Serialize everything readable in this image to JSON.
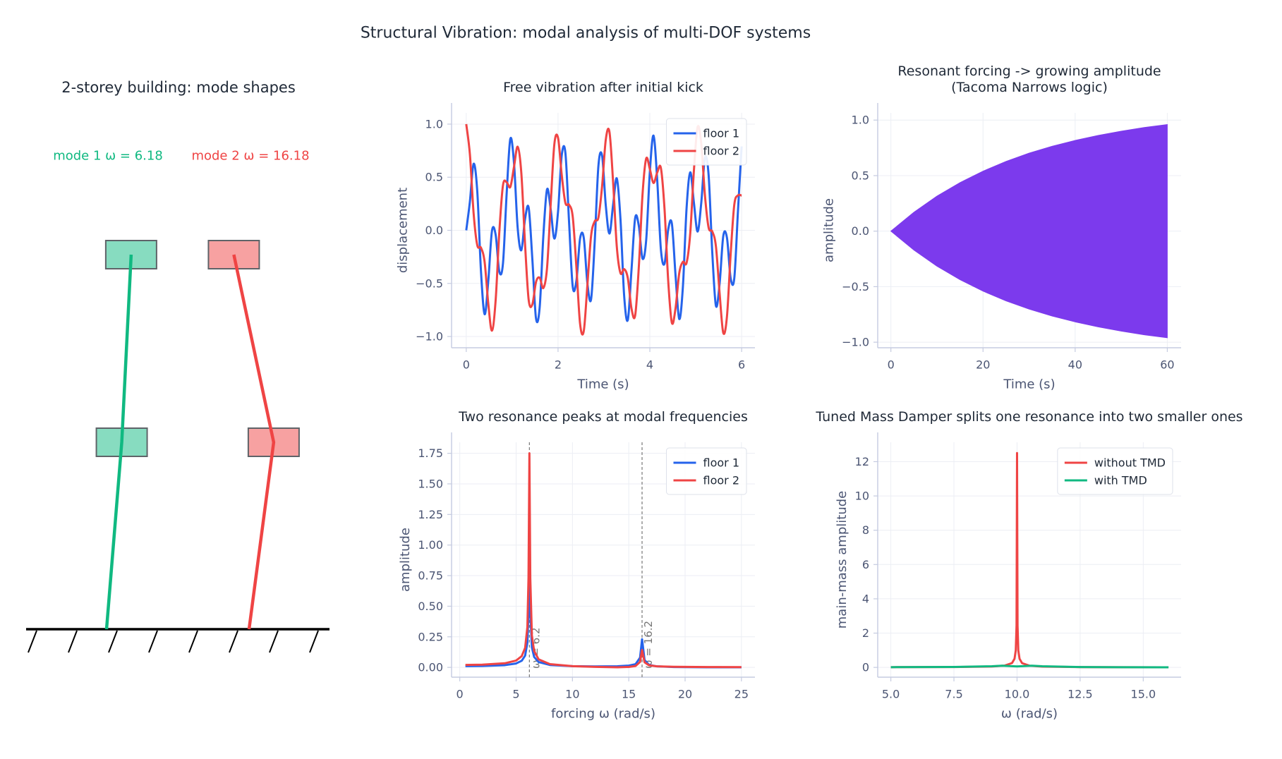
{
  "title": "Structural Vibration:  modal analysis of multi-DOF systems",
  "chart_data": [
    {
      "type": "mode_shapes",
      "title": "2-storey building:  mode shapes",
      "series": [
        {
          "name": "mode 1  ω = 6.18",
          "color": "#10b981",
          "values": [
            0,
            0.526,
            0.851
          ]
        },
        {
          "name": "mode 2  ω = 16.18",
          "color": "#ef4444",
          "values": [
            0,
            0.851,
            -0.526
          ]
        }
      ]
    },
    {
      "type": "line",
      "title": "Free vibration after initial kick",
      "xlabel": "Time (s)",
      "ylabel": "displacement",
      "smooth": true,
      "grid": true,
      "legend": "upper right",
      "xlim": [
        -0.32,
        6.29
      ],
      "ylim": [
        -1.106,
        1.106
      ],
      "xticks": [
        0,
        2,
        4,
        6
      ],
      "yticks": [
        {
          "value": -1,
          "label": "−1.0"
        },
        {
          "value": -0.5,
          "label": "−0.5"
        },
        {
          "value": 0,
          "label": "0.0"
        },
        {
          "value": 0.5,
          "label": "0.5"
        },
        {
          "value": 1,
          "label": "1.0"
        }
      ],
      "x": [
        0,
        0.08,
        0.16,
        0.24,
        0.32,
        0.4,
        0.48,
        0.56,
        0.64,
        0.72,
        0.8,
        0.88,
        0.96,
        1.04,
        1.12,
        1.2,
        1.28,
        1.36,
        1.44,
        1.52,
        1.6,
        1.68,
        1.76,
        1.84,
        1.92,
        2,
        2.08,
        2.16,
        2.24,
        2.32,
        2.4,
        2.48,
        2.56,
        2.64,
        2.72,
        2.8,
        2.88,
        2.96,
        3.04,
        3.12,
        3.2,
        3.28,
        3.36,
        3.44,
        3.52,
        3.6,
        3.68,
        3.76,
        3.84,
        3.92,
        4,
        4.08,
        4.16,
        4.24,
        4.32,
        4.4,
        4.48,
        4.56,
        4.64,
        4.72,
        4.8,
        4.88,
        4.96,
        5.04,
        5.12,
        5.2,
        5.28,
        5.36,
        5.44,
        5.52,
        5.6,
        5.68,
        5.76,
        5.84,
        5.92,
        6
      ],
      "series": [
        {
          "name": "floor 1",
          "color": "#2563eb",
          "values": [
            0,
            0.272,
            0.626,
            0.369,
            -0.377,
            -0.79,
            -0.479,
            -0.007,
            -0.04,
            -0.388,
            -0.313,
            0.342,
            0.86,
            0.637,
            0.025,
            -0.188,
            0.103,
            0.213,
            -0.271,
            -0.83,
            -0.725,
            -0.052,
            0.385,
            0.197,
            -0.078,
            0.175,
            0.705,
            0.73,
            0.078,
            -0.53,
            -0.476,
            -0.077,
            -0.07,
            -0.501,
            -0.649,
            -0.099,
            0.609,
            0.701,
            0.235,
            -0.031,
            0.241,
            0.489,
            0.107,
            -0.614,
            -0.845,
            -0.375,
            0.115,
            0.042,
            -0.266,
            -0.095,
            0.549,
            0.892,
            0.479,
            -0.175,
            -0.314,
            0.007,
            0.063,
            -0.424,
            -0.835,
            -0.532,
            0.206,
            0.546,
            0.26,
            -0.012,
            0.257,
            0.682,
            0.523,
            -0.207,
            -0.711,
            -0.502,
            -0.054,
            -0.07,
            -0.449,
            -0.451,
            0.182,
            0.79
          ]
        },
        {
          "name": "floor 2",
          "color": "#ef4444",
          "values": [
            1,
            0.713,
            0.163,
            -0.14,
            -0.163,
            -0.297,
            -0.689,
            -0.945,
            -0.662,
            -0.02,
            0.423,
            0.453,
            0.408,
            0.596,
            0.787,
            0.54,
            -0.12,
            -0.655,
            -0.698,
            -0.487,
            -0.447,
            -0.544,
            -0.356,
            0.246,
            0.813,
            0.871,
            0.523,
            0.258,
            0.241,
            0.128,
            -0.347,
            -0.88,
            -0.95,
            -0.512,
            -0.052,
            0.086,
            0.121,
            0.416,
            0.853,
            0.927,
            0.451,
            -0.153,
            -0.403,
            -0.365,
            -0.45,
            -0.736,
            -0.802,
            -0.344,
            0.333,
            0.675,
            0.577,
            0.446,
            0.543,
            0.588,
            0.2,
            -0.474,
            -0.871,
            -0.734,
            -0.405,
            -0.297,
            -0.307,
            -0.029,
            0.562,
            0.972,
            0.816,
            0.331,
            0.026,
            -0.01,
            -0.152,
            -0.593,
            -0.966,
            -0.812,
            -0.23,
            0.241,
            0.329,
            0.327
          ]
        }
      ]
    },
    {
      "type": "band",
      "title": [
        "Resonant forcing -> growing amplitude",
        "(Tacoma Narrows logic)"
      ],
      "xlabel": "Time (s)",
      "ylabel": "amplitude",
      "grid": true,
      "color": "#7c3aed",
      "xlim": [
        -2.86,
        63
      ],
      "ylim": [
        -1.05,
        1.065
      ],
      "xticks": [
        0,
        20,
        40,
        60
      ],
      "yticks": [
        {
          "value": -1,
          "label": "−1.0"
        },
        {
          "value": -0.5,
          "label": "−0.5"
        },
        {
          "value": 0,
          "label": "0.0"
        },
        {
          "value": 0.5,
          "label": "0.5"
        },
        {
          "value": 1,
          "label": "1.0"
        }
      ],
      "x": [
        0,
        5,
        10,
        15,
        20,
        25,
        30,
        35,
        40,
        45,
        50,
        55,
        60
      ],
      "upper": [
        0,
        0.17,
        0.315,
        0.437,
        0.54,
        0.628,
        0.702,
        0.764,
        0.817,
        0.862,
        0.9,
        0.933,
        0.96
      ],
      "lower": [
        0,
        -0.17,
        -0.315,
        -0.437,
        -0.54,
        -0.628,
        -0.702,
        -0.764,
        -0.817,
        -0.862,
        -0.9,
        -0.933,
        -0.96
      ]
    },
    {
      "type": "line",
      "title": "Two resonance peaks at modal frequencies",
      "xlabel": "forcing ω (rad/s)",
      "ylabel": "amplitude",
      "grid": true,
      "legend": "upper right",
      "xlim": [
        -0.73,
        26.2
      ],
      "ylim": [
        -0.08,
        1.84
      ],
      "xticks": [
        0,
        5,
        10,
        15,
        20,
        25
      ],
      "yticks": [
        {
          "value": 0,
          "label": "0.00"
        },
        {
          "value": 0.25,
          "label": "0.25"
        },
        {
          "value": 0.5,
          "label": "0.50"
        },
        {
          "value": 0.75,
          "label": "0.75"
        },
        {
          "value": 1,
          "label": "1.00"
        },
        {
          "value": 1.25,
          "label": "1.25"
        },
        {
          "value": 1.5,
          "label": "1.50"
        },
        {
          "value": 1.75,
          "label": "1.75"
        }
      ],
      "vlines": [
        {
          "x": 6.18,
          "label": "ω = 6.2"
        },
        {
          "x": 16.18,
          "label": "ω = 16.2"
        }
      ],
      "x": [
        0.5,
        2,
        4,
        5,
        5.5,
        5.8,
        6,
        6.1,
        6.18,
        6.26,
        6.4,
        6.6,
        7,
        8,
        10,
        12,
        14,
        15,
        15.6,
        16,
        16.18,
        16.4,
        16.8,
        17.5,
        19,
        22,
        25
      ],
      "series": [
        {
          "name": "floor 1",
          "color": "#2563eb",
          "values": [
            0.0101,
            0.0113,
            0.0183,
            0.032,
            0.0544,
            0.0962,
            0.2016,
            0.4513,
            1.08,
            0.452,
            0.1639,
            0.0854,
            0.0435,
            0.0196,
            0.01,
            0.008,
            0.0096,
            0.0146,
            0.0264,
            0.0791,
            0.23,
            0.0606,
            0.0201,
            0.0084,
            0.0031,
            0.001,
            0.0005
          ]
        },
        {
          "name": "floor 2",
          "color": "#ef4444",
          "values": [
            0.0201,
            0.0222,
            0.0337,
            0.056,
            0.0923,
            0.16,
            0.3306,
            0.7347,
            1.75,
            0.727,
            0.2606,
            0.1337,
            0.0657,
            0.0266,
            0.01,
            0.0045,
            0.0004,
            0.0036,
            0.0115,
            0.0443,
            0.142,
            0.0418,
            0.0165,
            0.0089,
            0.005,
            0.0029,
            0.002
          ]
        }
      ]
    },
    {
      "type": "line",
      "title": "Tuned Mass Damper splits one resonance into two smaller ones",
      "xlabel": "ω  (rad/s)",
      "ylabel": "main-mass amplitude",
      "grid": true,
      "legend": "upper right",
      "xlim": [
        4.48,
        16.5
      ],
      "ylim": [
        -0.57,
        13.13
      ],
      "xticks": [
        {
          "value": 5,
          "label": "5.0"
        },
        {
          "value": 7.5,
          "label": "7.5"
        },
        {
          "value": 10,
          "label": "10.0"
        },
        {
          "value": 12.5,
          "label": "12.5"
        },
        {
          "value": 15,
          "label": "15.0"
        }
      ],
      "yticks": [
        0,
        2,
        4,
        6,
        8,
        10,
        12
      ],
      "series": [
        {
          "name": "without TMD",
          "color": "#ef4444",
          "x": [
            5,
            7.5,
            9,
            9.5,
            9.8,
            9.9,
            9.95,
            9.98,
            10,
            10.02,
            10.05,
            10.1,
            10.2,
            10.5,
            11,
            12.5,
            14,
            16
          ],
          "values": [
            0.0133,
            0.0229,
            0.0526,
            0.1026,
            0.2525,
            0.5025,
            1.0,
            2.454,
            12.5,
            2.45,
            0.997,
            0.4975,
            0.2475,
            0.0976,
            0.0476,
            0.0178,
            0.0104,
            0.0064
          ]
        },
        {
          "name": "with TMD",
          "color": "#10b981",
          "x": [
            5,
            7.5,
            9,
            9.4,
            9.7,
            10,
            10.3,
            10.6,
            11,
            12.5,
            14,
            16
          ],
          "values": [
            0.013,
            0.028,
            0.07,
            0.1,
            0.08,
            0.06,
            0.08,
            0.1,
            0.07,
            0.02,
            0.011,
            0.007
          ]
        }
      ]
    }
  ]
}
